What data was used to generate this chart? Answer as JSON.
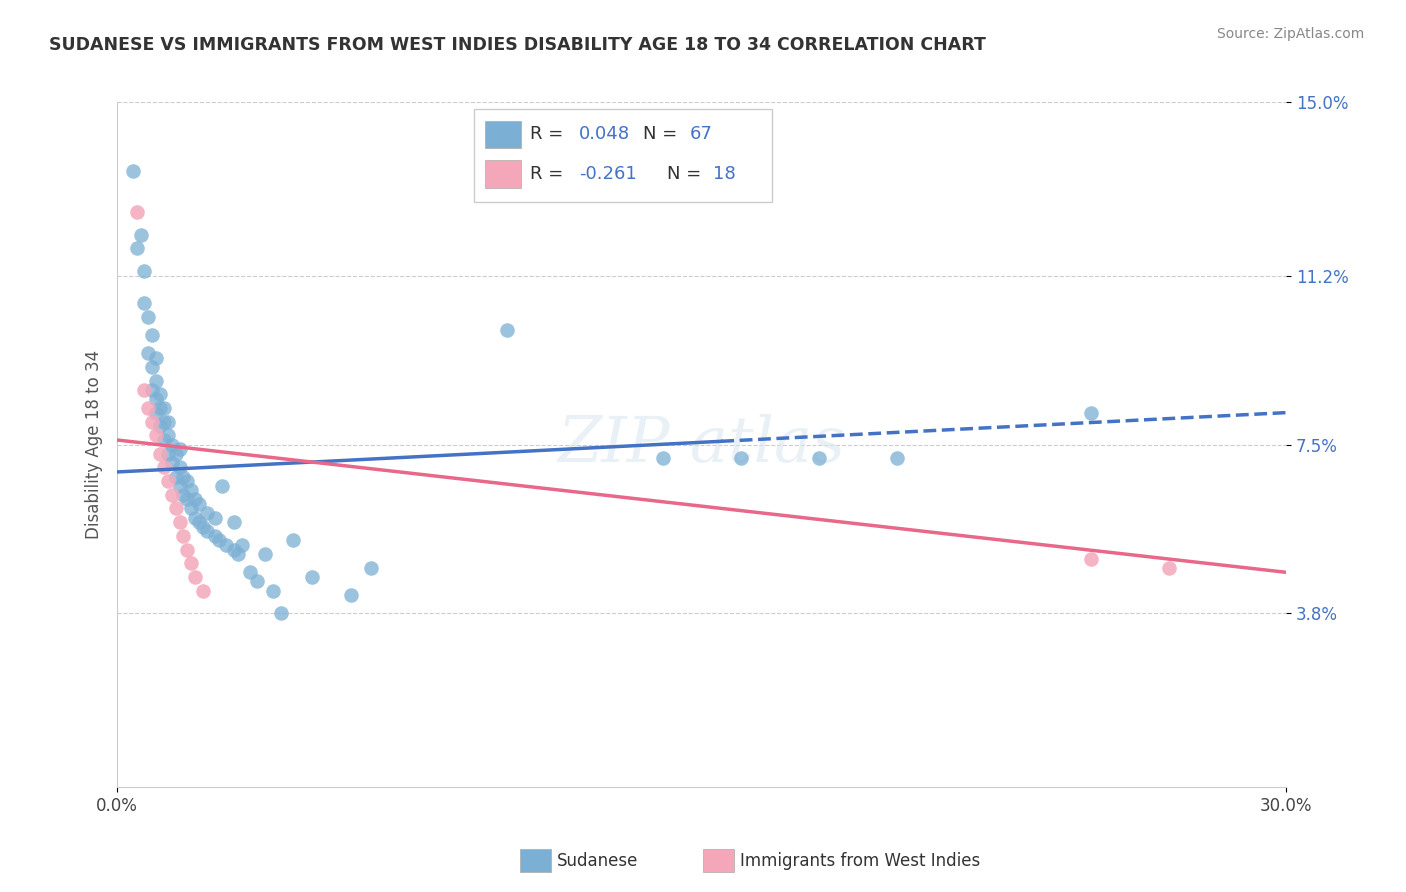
{
  "title": "SUDANESE VS IMMIGRANTS FROM WEST INDIES DISABILITY AGE 18 TO 34 CORRELATION CHART",
  "source": "Source: ZipAtlas.com",
  "ylabel": "Disability Age 18 to 34",
  "xlim": [
    0.0,
    0.3
  ],
  "ylim": [
    0.0,
    0.15
  ],
  "ytick_labels": [
    "3.8%",
    "7.5%",
    "11.2%",
    "15.0%"
  ],
  "ytick_positions": [
    0.038,
    0.075,
    0.112,
    0.15
  ],
  "grid_color": "#cccccc",
  "background_color": "#ffffff",
  "blue_color": "#7bafd4",
  "pink_color": "#f4a7b9",
  "blue_line_color": "#4472c4",
  "pink_line_color": "#e8688a",
  "sudanese_x": [
    0.004,
    0.005,
    0.006,
    0.007,
    0.007,
    0.008,
    0.008,
    0.009,
    0.009,
    0.009,
    0.01,
    0.01,
    0.01,
    0.01,
    0.011,
    0.011,
    0.011,
    0.012,
    0.012,
    0.012,
    0.013,
    0.013,
    0.013,
    0.014,
    0.014,
    0.015,
    0.015,
    0.016,
    0.016,
    0.016,
    0.017,
    0.017,
    0.018,
    0.018,
    0.019,
    0.019,
    0.02,
    0.02,
    0.021,
    0.021,
    0.022,
    0.023,
    0.023,
    0.025,
    0.025,
    0.026,
    0.027,
    0.028,
    0.03,
    0.03,
    0.031,
    0.032,
    0.034,
    0.036,
    0.038,
    0.04,
    0.042,
    0.045,
    0.05,
    0.06,
    0.065,
    0.1,
    0.14,
    0.16,
    0.18,
    0.2,
    0.25
  ],
  "sudanese_y": [
    0.135,
    0.118,
    0.121,
    0.106,
    0.113,
    0.095,
    0.103,
    0.087,
    0.092,
    0.099,
    0.082,
    0.085,
    0.089,
    0.094,
    0.079,
    0.083,
    0.086,
    0.076,
    0.08,
    0.083,
    0.073,
    0.077,
    0.08,
    0.071,
    0.075,
    0.068,
    0.073,
    0.066,
    0.07,
    0.074,
    0.064,
    0.068,
    0.063,
    0.067,
    0.061,
    0.065,
    0.059,
    0.063,
    0.058,
    0.062,
    0.057,
    0.056,
    0.06,
    0.055,
    0.059,
    0.054,
    0.066,
    0.053,
    0.052,
    0.058,
    0.051,
    0.053,
    0.047,
    0.045,
    0.051,
    0.043,
    0.038,
    0.054,
    0.046,
    0.042,
    0.048,
    0.1,
    0.072,
    0.072,
    0.072,
    0.072,
    0.082
  ],
  "westindies_x": [
    0.005,
    0.007,
    0.008,
    0.009,
    0.01,
    0.011,
    0.012,
    0.013,
    0.014,
    0.015,
    0.016,
    0.017,
    0.018,
    0.019,
    0.02,
    0.022,
    0.25,
    0.27
  ],
  "westindies_y": [
    0.126,
    0.087,
    0.083,
    0.08,
    0.077,
    0.073,
    0.07,
    0.067,
    0.064,
    0.061,
    0.058,
    0.055,
    0.052,
    0.049,
    0.046,
    0.043,
    0.05,
    0.048
  ],
  "blue_trend_x": [
    0.0,
    0.3
  ],
  "blue_trend_y": [
    0.069,
    0.082
  ],
  "pink_trend_x": [
    0.0,
    0.3
  ],
  "pink_trend_y": [
    0.076,
    0.047
  ]
}
